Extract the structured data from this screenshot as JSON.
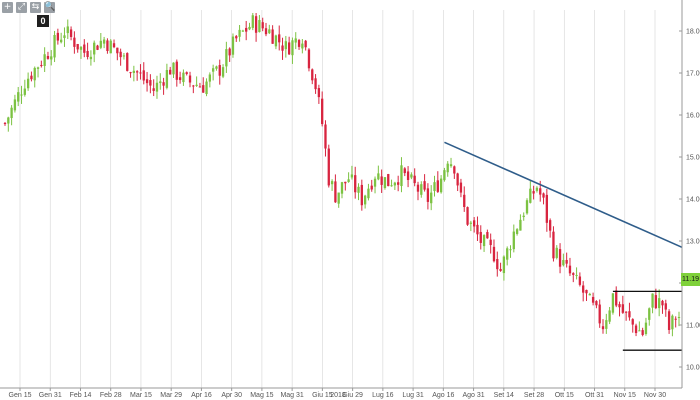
{
  "toolbar": {
    "buttons": [
      {
        "glyph": "+",
        "icon": "zoom-in-icon"
      },
      {
        "glyph": "⤢",
        "icon": "zoom-region-icon"
      },
      {
        "glyph": "⇆",
        "icon": "pan-icon"
      },
      {
        "glyph": "🔍",
        "icon": "search-icon"
      }
    ],
    "selector_value": "0"
  },
  "price_badge": "11.19",
  "colors": {
    "up": "#7cc242",
    "down": "#d8243f",
    "trendline": "#2f5d8a",
    "range_box": "#111111",
    "grid": "#d6d6d6",
    "axis_text": "#555555"
  },
  "chart_data": {
    "type": "candlestick",
    "title": "",
    "year_label": "2018",
    "ylim": [
      9.5,
      18.5
    ],
    "y_ticks": [
      "10.00",
      "11.00",
      "12.00",
      "13.00",
      "14.00",
      "15.00",
      "16.00",
      "17.00",
      "18.00"
    ],
    "x_ticks": [
      "Gen 15",
      "Gen 31",
      "Feb 14",
      "Feb 28",
      "Mar 15",
      "Mar 29",
      "Apr 16",
      "Apr 30",
      "Mag 15",
      "Mag 31",
      "Giu 15",
      "Giu 29",
      "Lug 16",
      "Lug 31",
      "Ago 16",
      "Ago 31",
      "Set 14",
      "Set 28",
      "Ott 15",
      "Ott 31",
      "Nov 15",
      "Nov 30"
    ],
    "close_path": [
      [
        0,
        15.8
      ],
      [
        6,
        16.8
      ],
      [
        12,
        17.4
      ],
      [
        18,
        18.0
      ],
      [
        24,
        17.5
      ],
      [
        30,
        17.8
      ],
      [
        35,
        17.4
      ],
      [
        40,
        17.0
      ],
      [
        45,
        16.6
      ],
      [
        50,
        17.1
      ],
      [
        55,
        16.8
      ],
      [
        60,
        16.7
      ],
      [
        65,
        17.1
      ],
      [
        70,
        17.8
      ],
      [
        75,
        18.2
      ],
      [
        80,
        18.0
      ],
      [
        85,
        17.6
      ],
      [
        90,
        17.9
      ],
      [
        94,
        16.7
      ],
      [
        96,
        15.8
      ],
      [
        98,
        14.5
      ],
      [
        100,
        14.1
      ],
      [
        104,
        14.5
      ],
      [
        108,
        14.0
      ],
      [
        112,
        14.6
      ],
      [
        116,
        14.4
      ],
      [
        120,
        14.6
      ],
      [
        124,
        14.3
      ],
      [
        128,
        14.0
      ],
      [
        132,
        14.5
      ],
      [
        134,
        15.0
      ],
      [
        136,
        14.8
      ],
      [
        138,
        14.0
      ],
      [
        140,
        13.5
      ],
      [
        144,
        13.0
      ],
      [
        148,
        12.7
      ],
      [
        150,
        12.3
      ],
      [
        154,
        13.2
      ],
      [
        158,
        13.9
      ],
      [
        161,
        14.3
      ],
      [
        163,
        13.9
      ],
      [
        166,
        12.8
      ],
      [
        170,
        12.3
      ],
      [
        174,
        11.9
      ],
      [
        178,
        11.4
      ],
      [
        181,
        11.0
      ],
      [
        184,
        11.7
      ],
      [
        187,
        11.3
      ],
      [
        190,
        11.0
      ],
      [
        193,
        10.8
      ],
      [
        196,
        11.6
      ],
      [
        199,
        11.5
      ],
      [
        201,
        10.9
      ],
      [
        203,
        11.2
      ]
    ],
    "n_candles": 205,
    "trendline": {
      "x": [
        133,
        205
      ],
      "y": [
        15.35,
        12.85
      ]
    },
    "range_box": {
      "x": [
        184,
        205
      ],
      "top": 11.8,
      "bottom": 10.4
    },
    "last_price": 11.19
  }
}
